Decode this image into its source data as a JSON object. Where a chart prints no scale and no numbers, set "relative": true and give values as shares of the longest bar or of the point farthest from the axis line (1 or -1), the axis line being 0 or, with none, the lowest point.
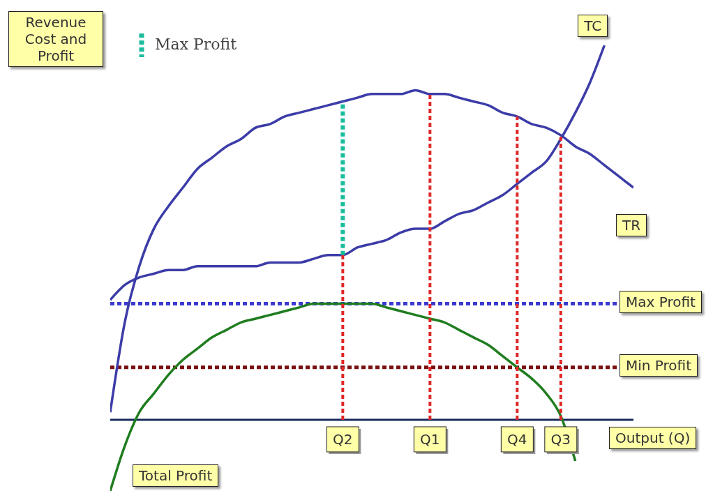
{
  "chart_data": {
    "type": "line",
    "relative": true,
    "legend": "top left",
    "xlabel": "Output (Q)",
    "ylabel": "Revenue Cost and Profit",
    "line_style": "solid",
    "categories": [
      null,
      null,
      null,
      null,
      null,
      null,
      null,
      null,
      null,
      null,
      null,
      null,
      null,
      null,
      null,
      null,
      "Q2",
      null,
      null,
      null,
      null,
      null,
      "Q1",
      null,
      null,
      null,
      null,
      null,
      "Q4",
      null,
      null,
      "Q3",
      null,
      null,
      null,
      null,
      null
    ],
    "series": [
      {
        "name": "TR",
        "color": "#3c3ca8",
        "values": [
          0.02,
          0.26,
          0.41,
          0.51,
          0.57,
          0.62,
          0.67,
          0.7,
          0.73,
          0.75,
          0.78,
          0.79,
          0.81,
          0.82,
          0.83,
          0.84,
          0.85,
          0.86,
          0.87,
          0.87,
          0.87,
          0.88,
          0.87,
          0.87,
          0.86,
          0.85,
          0.84,
          0.82,
          0.81,
          0.79,
          0.78,
          0.76,
          0.73,
          0.71,
          0.68,
          0.65,
          0.62
        ]
      },
      {
        "name": "TC",
        "color": "#3c3ca8",
        "values": [
          0.32,
          0.36,
          0.38,
          0.39,
          0.4,
          0.4,
          0.41,
          0.41,
          0.41,
          0.41,
          0.41,
          0.42,
          0.42,
          0.42,
          0.43,
          0.44,
          0.44,
          0.46,
          0.47,
          0.48,
          0.5,
          0.51,
          0.51,
          0.53,
          0.55,
          0.56,
          0.58,
          0.6,
          0.63,
          0.66,
          0.69,
          0.75,
          0.82,
          0.9,
          1,
          null,
          null
        ]
      },
      {
        "name": "Total Profit",
        "color": "#1f7d1f",
        "values": [
          -0.19,
          -0.07,
          0.02,
          0.07,
          0.12,
          0.16,
          0.19,
          0.22,
          0.24,
          0.26,
          0.27,
          0.28,
          0.29,
          0.3,
          0.31,
          0.31,
          0.31,
          0.31,
          0.31,
          0.3,
          0.29,
          0.28,
          0.27,
          0.26,
          0.24,
          0.22,
          0.2,
          0.17,
          0.14,
          0.11,
          0.07,
          0.01,
          -0.11,
          null,
          null,
          null,
          null
        ]
      }
    ],
    "ref_lines": [
      {
        "axis": "y",
        "value": 0.31,
        "label": "Max Profit",
        "color": "#3b3bd0",
        "line_style": "dotted"
      },
      {
        "axis": "y",
        "value": 0.14,
        "label": "Min Profit",
        "color": "#7a1010",
        "line_style": "dotted"
      },
      {
        "axis": "x",
        "value": "Q2",
        "color": "#e02828",
        "line_style": "dotted"
      },
      {
        "axis": "x",
        "value": "Q1",
        "color": "#e02828",
        "line_style": "dotted"
      },
      {
        "axis": "x",
        "value": "Q4",
        "color": "#e02828",
        "line_style": "dotted"
      },
      {
        "axis": "x",
        "value": "Q3",
        "color": "#e02828",
        "line_style": "dotted"
      },
      {
        "axis": "x",
        "value": "Q2",
        "label": "Max Profit",
        "color": "#1abc9c",
        "line_style": "dotted"
      }
    ]
  }
}
